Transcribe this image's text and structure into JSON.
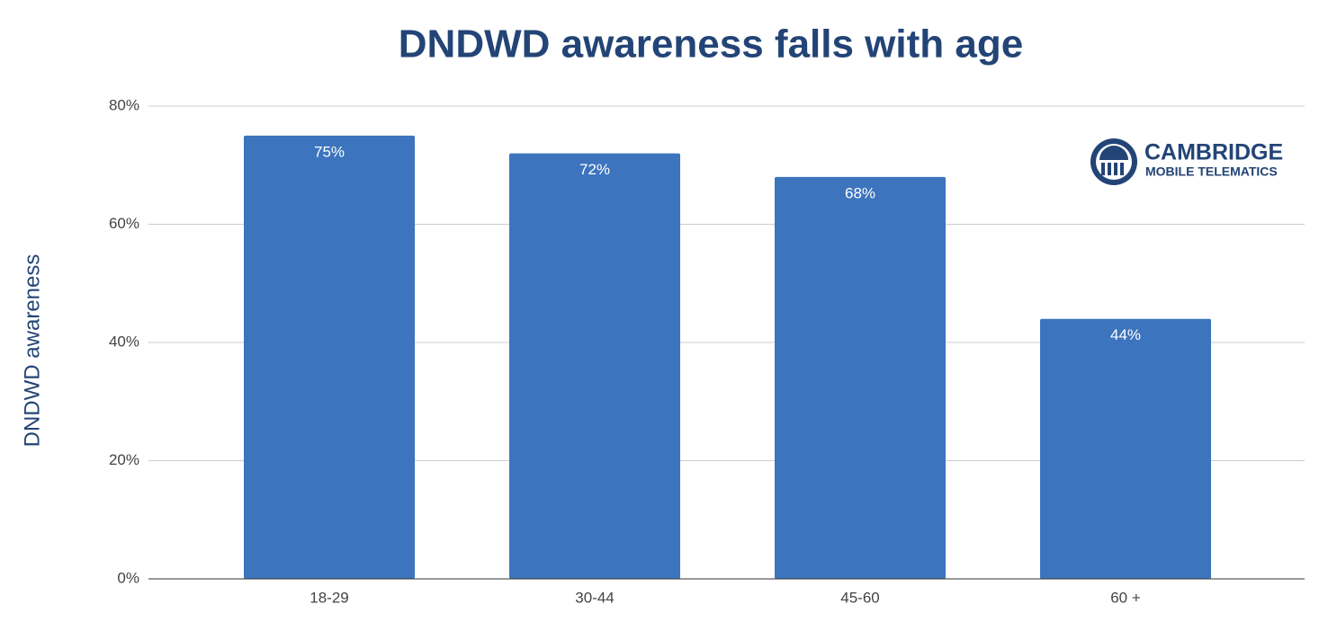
{
  "chart_data": {
    "type": "bar",
    "title": "DNDWD awareness falls with age",
    "y_label": "DNDWD awareness",
    "categories": [
      "18-29",
      "30-44",
      "45-60",
      "60 +"
    ],
    "values": [
      75,
      72,
      68,
      44
    ],
    "value_labels": [
      "75%",
      "72%",
      "68%",
      "44%"
    ],
    "color": "#3c74bd",
    "ylim": [
      0,
      80
    ],
    "yticks": [
      {
        "value": 0,
        "label": "0%"
      },
      {
        "value": 20,
        "label": "20%"
      },
      {
        "value": 40,
        "label": "40%"
      },
      {
        "value": 60,
        "label": "60%"
      },
      {
        "value": 80,
        "label": "80%"
      }
    ],
    "grid": true,
    "annotations": [
      "CAMBRIDGE",
      "MOBILE TELEMATICS"
    ]
  }
}
